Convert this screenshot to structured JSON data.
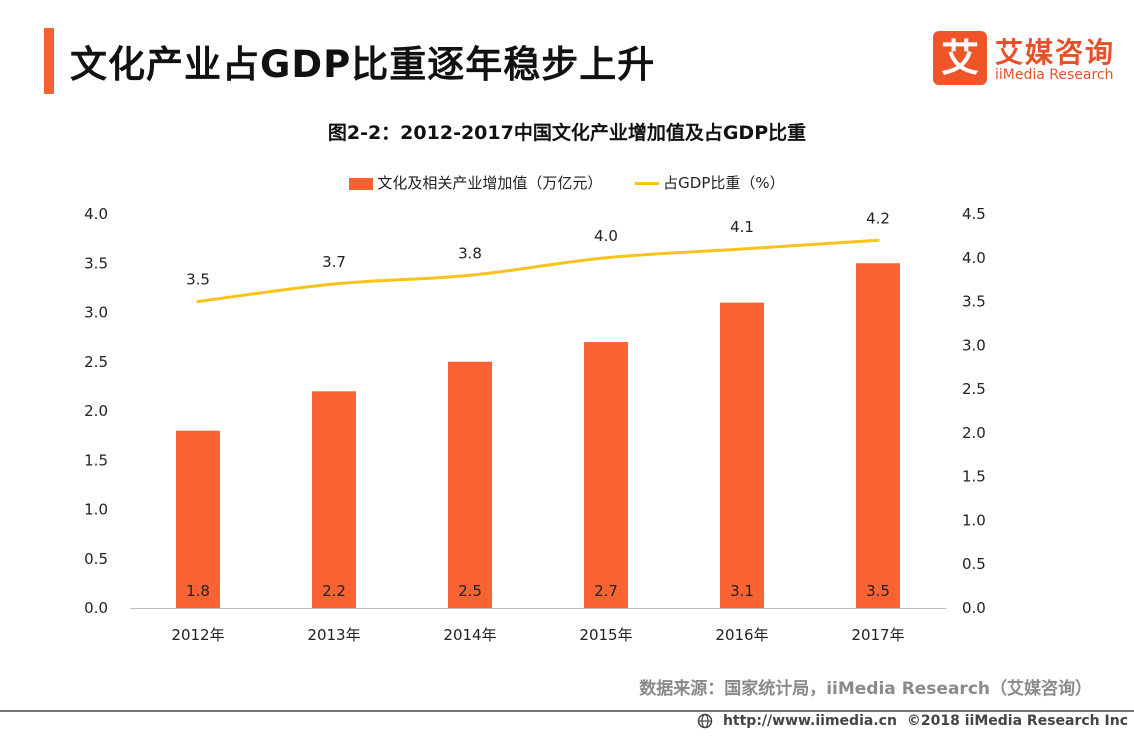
{
  "header": {
    "title": "文化产业占GDP比重逐年稳步上升"
  },
  "logo": {
    "glyph": "艾",
    "name_cn": "艾媒咨询",
    "name_en": "iiMedia Research"
  },
  "colors": {
    "accent": "#f4632f",
    "bar": "#f96334",
    "line": "#f8c31a"
  },
  "chart_data": {
    "type": "bar",
    "title": "图2-2：2012-2017中国文化产业增加值及占GDP比重",
    "categories": [
      "2012年",
      "2013年",
      "2014年",
      "2015年",
      "2016年",
      "2017年"
    ],
    "series": [
      {
        "name": "文化及相关产业增加值（万亿元）",
        "type": "bar",
        "axis": "left",
        "values": [
          1.8,
          2.2,
          2.5,
          2.7,
          3.1,
          3.5
        ],
        "labels": [
          "1.8",
          "2.2",
          "2.5",
          "2.7",
          "3.1",
          "3.5"
        ]
      },
      {
        "name": "占GDP比重（%）",
        "type": "line",
        "axis": "right",
        "values": [
          3.5,
          3.7,
          3.8,
          4.0,
          4.1,
          4.2
        ],
        "labels": [
          "3.5",
          "3.7",
          "3.8",
          "4.0",
          "4.1",
          "4.2"
        ]
      }
    ],
    "y_left": {
      "min": 0,
      "max": 4.0,
      "ticks": [
        "0.0",
        "0.5",
        "1.0",
        "1.5",
        "2.0",
        "2.5",
        "3.0",
        "3.5",
        "4.0"
      ]
    },
    "y_right": {
      "min": 0,
      "max": 4.5,
      "ticks": [
        "0.0",
        "0.5",
        "1.0",
        "1.5",
        "2.0",
        "2.5",
        "3.0",
        "3.5",
        "4.0",
        "4.5"
      ]
    },
    "legend_position": "top-center",
    "grid": false
  },
  "source": "数据来源：国家统计局，iiMedia Research（艾媒咨询）",
  "footer": {
    "url": "http://www.iimedia.cn",
    "copyright": "©2018  iiMedia Research  Inc"
  }
}
